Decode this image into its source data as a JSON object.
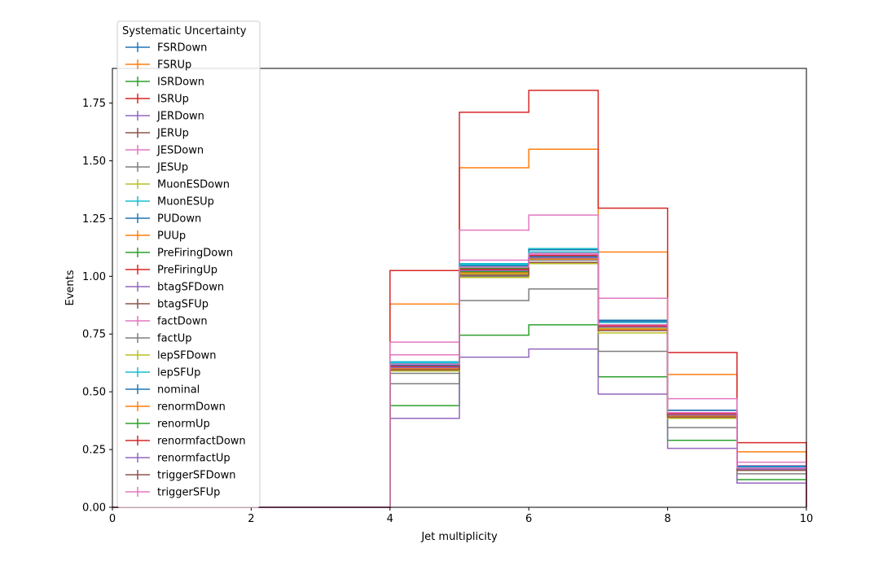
{
  "chart_data": {
    "type": "line",
    "step": "post",
    "xlabel": "Jet multiplicity",
    "ylabel": "Events",
    "xlim": [
      0,
      10
    ],
    "ylim": [
      0,
      1.9
    ],
    "x_ticks": [
      "0",
      "2",
      "4",
      "6",
      "8",
      "10"
    ],
    "y_ticks": [
      "0.00",
      "0.25",
      "0.50",
      "0.75",
      "1.00",
      "1.25",
      "1.50",
      "1.75"
    ],
    "bin_edges": [
      0,
      1,
      2,
      3,
      4,
      5,
      6,
      7,
      8,
      9,
      10
    ],
    "grid": false,
    "legend": {
      "title": "Systematic Uncertainty",
      "placement": "top-left"
    },
    "series": [
      {
        "name": "FSRDown",
        "color": "#1f77b4",
        "values": [
          0,
          0,
          0,
          0,
          0.615,
          1.045,
          1.12,
          0.805,
          0.42,
          0.175
        ]
      },
      {
        "name": "FSRUp",
        "color": "#ff7f0e",
        "values": [
          0,
          0,
          0,
          0,
          0.605,
          1.02,
          1.08,
          0.78,
          0.41,
          0.165
        ]
      },
      {
        "name": "ISRDown",
        "color": "#2ca02c",
        "values": [
          0,
          0,
          0,
          0,
          0.61,
          1.035,
          1.085,
          0.785,
          0.405,
          0.168
        ]
      },
      {
        "name": "ISRUp",
        "color": "#d62728",
        "values": [
          0,
          0,
          0,
          0,
          0.605,
          1.02,
          1.08,
          0.78,
          0.4,
          0.165
        ]
      },
      {
        "name": "JERDown",
        "color": "#9467bd",
        "values": [
          0,
          0,
          0,
          0,
          0.61,
          1.03,
          1.09,
          0.79,
          0.41,
          0.17
        ]
      },
      {
        "name": "JERUp",
        "color": "#8c564b",
        "values": [
          0,
          0,
          0,
          0,
          0.6,
          1.01,
          1.075,
          0.775,
          0.4,
          0.165
        ]
      },
      {
        "name": "JESDown",
        "color": "#e377c2",
        "values": [
          0,
          0,
          0,
          0,
          0.66,
          1.07,
          1.1,
          0.8,
          0.42,
          0.18
        ]
      },
      {
        "name": "JESUp",
        "color": "#7f7f7f",
        "values": [
          0,
          0,
          0,
          0,
          0.58,
          1.0,
          1.07,
          0.77,
          0.39,
          0.16
        ]
      },
      {
        "name": "MuonESDown",
        "color": "#bcbd22",
        "values": [
          0,
          0,
          0,
          0,
          0.6,
          1.01,
          1.075,
          0.775,
          0.4,
          0.165
        ]
      },
      {
        "name": "MuonESUp",
        "color": "#17becf",
        "values": [
          0,
          0,
          0,
          0,
          0.63,
          1.05,
          1.12,
          0.8,
          0.41,
          0.175
        ]
      },
      {
        "name": "PUDown",
        "color": "#1f77b4",
        "values": [
          0,
          0,
          0,
          0,
          0.62,
          1.045,
          1.115,
          0.81,
          0.42,
          0.178
        ]
      },
      {
        "name": "PUUp",
        "color": "#ff7f0e",
        "values": [
          0,
          0,
          0,
          0,
          0.88,
          1.47,
          1.55,
          1.105,
          0.575,
          0.24
        ]
      },
      {
        "name": "PreFiringDown",
        "color": "#2ca02c",
        "values": [
          0,
          0,
          0,
          0,
          0.44,
          0.745,
          0.79,
          0.565,
          0.29,
          0.12
        ]
      },
      {
        "name": "PreFiringUp",
        "color": "#d62728",
        "values": [
          0,
          0,
          0,
          0,
          1.025,
          1.71,
          1.805,
          1.295,
          0.67,
          0.28
        ]
      },
      {
        "name": "btagSFDown",
        "color": "#9467bd",
        "values": [
          0,
          0,
          0,
          0,
          0.385,
          0.65,
          0.685,
          0.49,
          0.255,
          0.105
        ]
      },
      {
        "name": "btagSFUp",
        "color": "#8c564b",
        "values": [
          0,
          0,
          0,
          0,
          0.605,
          1.025,
          1.08,
          0.78,
          0.4,
          0.165
        ]
      },
      {
        "name": "factDown",
        "color": "#e377c2",
        "values": [
          0,
          0,
          0,
          0,
          0.715,
          1.2,
          1.265,
          0.905,
          0.47,
          0.195
        ]
      },
      {
        "name": "factUp",
        "color": "#7f7f7f",
        "values": [
          0,
          0,
          0,
          0,
          0.535,
          0.895,
          0.945,
          0.675,
          0.345,
          0.145
        ]
      },
      {
        "name": "lepSFDown",
        "color": "#bcbd22",
        "values": [
          0,
          0,
          0,
          0,
          0.59,
          0.995,
          1.055,
          0.755,
          0.385,
          0.16
        ]
      },
      {
        "name": "lepSFUp",
        "color": "#17becf",
        "values": [
          0,
          0,
          0,
          0,
          0.625,
          1.055,
          1.105,
          0.79,
          0.41,
          0.17
        ]
      },
      {
        "name": "nominal",
        "color": "#1f77b4",
        "values": [
          0,
          0,
          0,
          0,
          0.61,
          1.03,
          1.085,
          0.785,
          0.405,
          0.168
        ]
      },
      {
        "name": "renormDown",
        "color": "#ff7f0e",
        "values": [
          0,
          0,
          0,
          0,
          0.6,
          1.015,
          1.075,
          0.77,
          0.395,
          0.163
        ]
      },
      {
        "name": "renormUp",
        "color": "#2ca02c",
        "values": [
          0,
          0,
          0,
          0,
          0.605,
          1.02,
          1.08,
          0.78,
          0.4,
          0.165
        ]
      },
      {
        "name": "renormfactDown",
        "color": "#d62728",
        "values": [
          0,
          0,
          0,
          0,
          0.61,
          1.03,
          1.09,
          0.785,
          0.405,
          0.168
        ]
      },
      {
        "name": "renormfactUp",
        "color": "#9467bd",
        "values": [
          0,
          0,
          0,
          0,
          0.605,
          1.025,
          1.08,
          0.78,
          0.4,
          0.165
        ]
      },
      {
        "name": "triggerSFDown",
        "color": "#8c564b",
        "values": [
          0,
          0,
          0,
          0,
          0.595,
          1.005,
          1.06,
          0.765,
          0.39,
          0.16
        ]
      },
      {
        "name": "triggerSFUp",
        "color": "#e377c2",
        "values": [
          0,
          0,
          0,
          0,
          0.62,
          1.04,
          1.095,
          0.79,
          0.41,
          0.17
        ]
      }
    ]
  }
}
